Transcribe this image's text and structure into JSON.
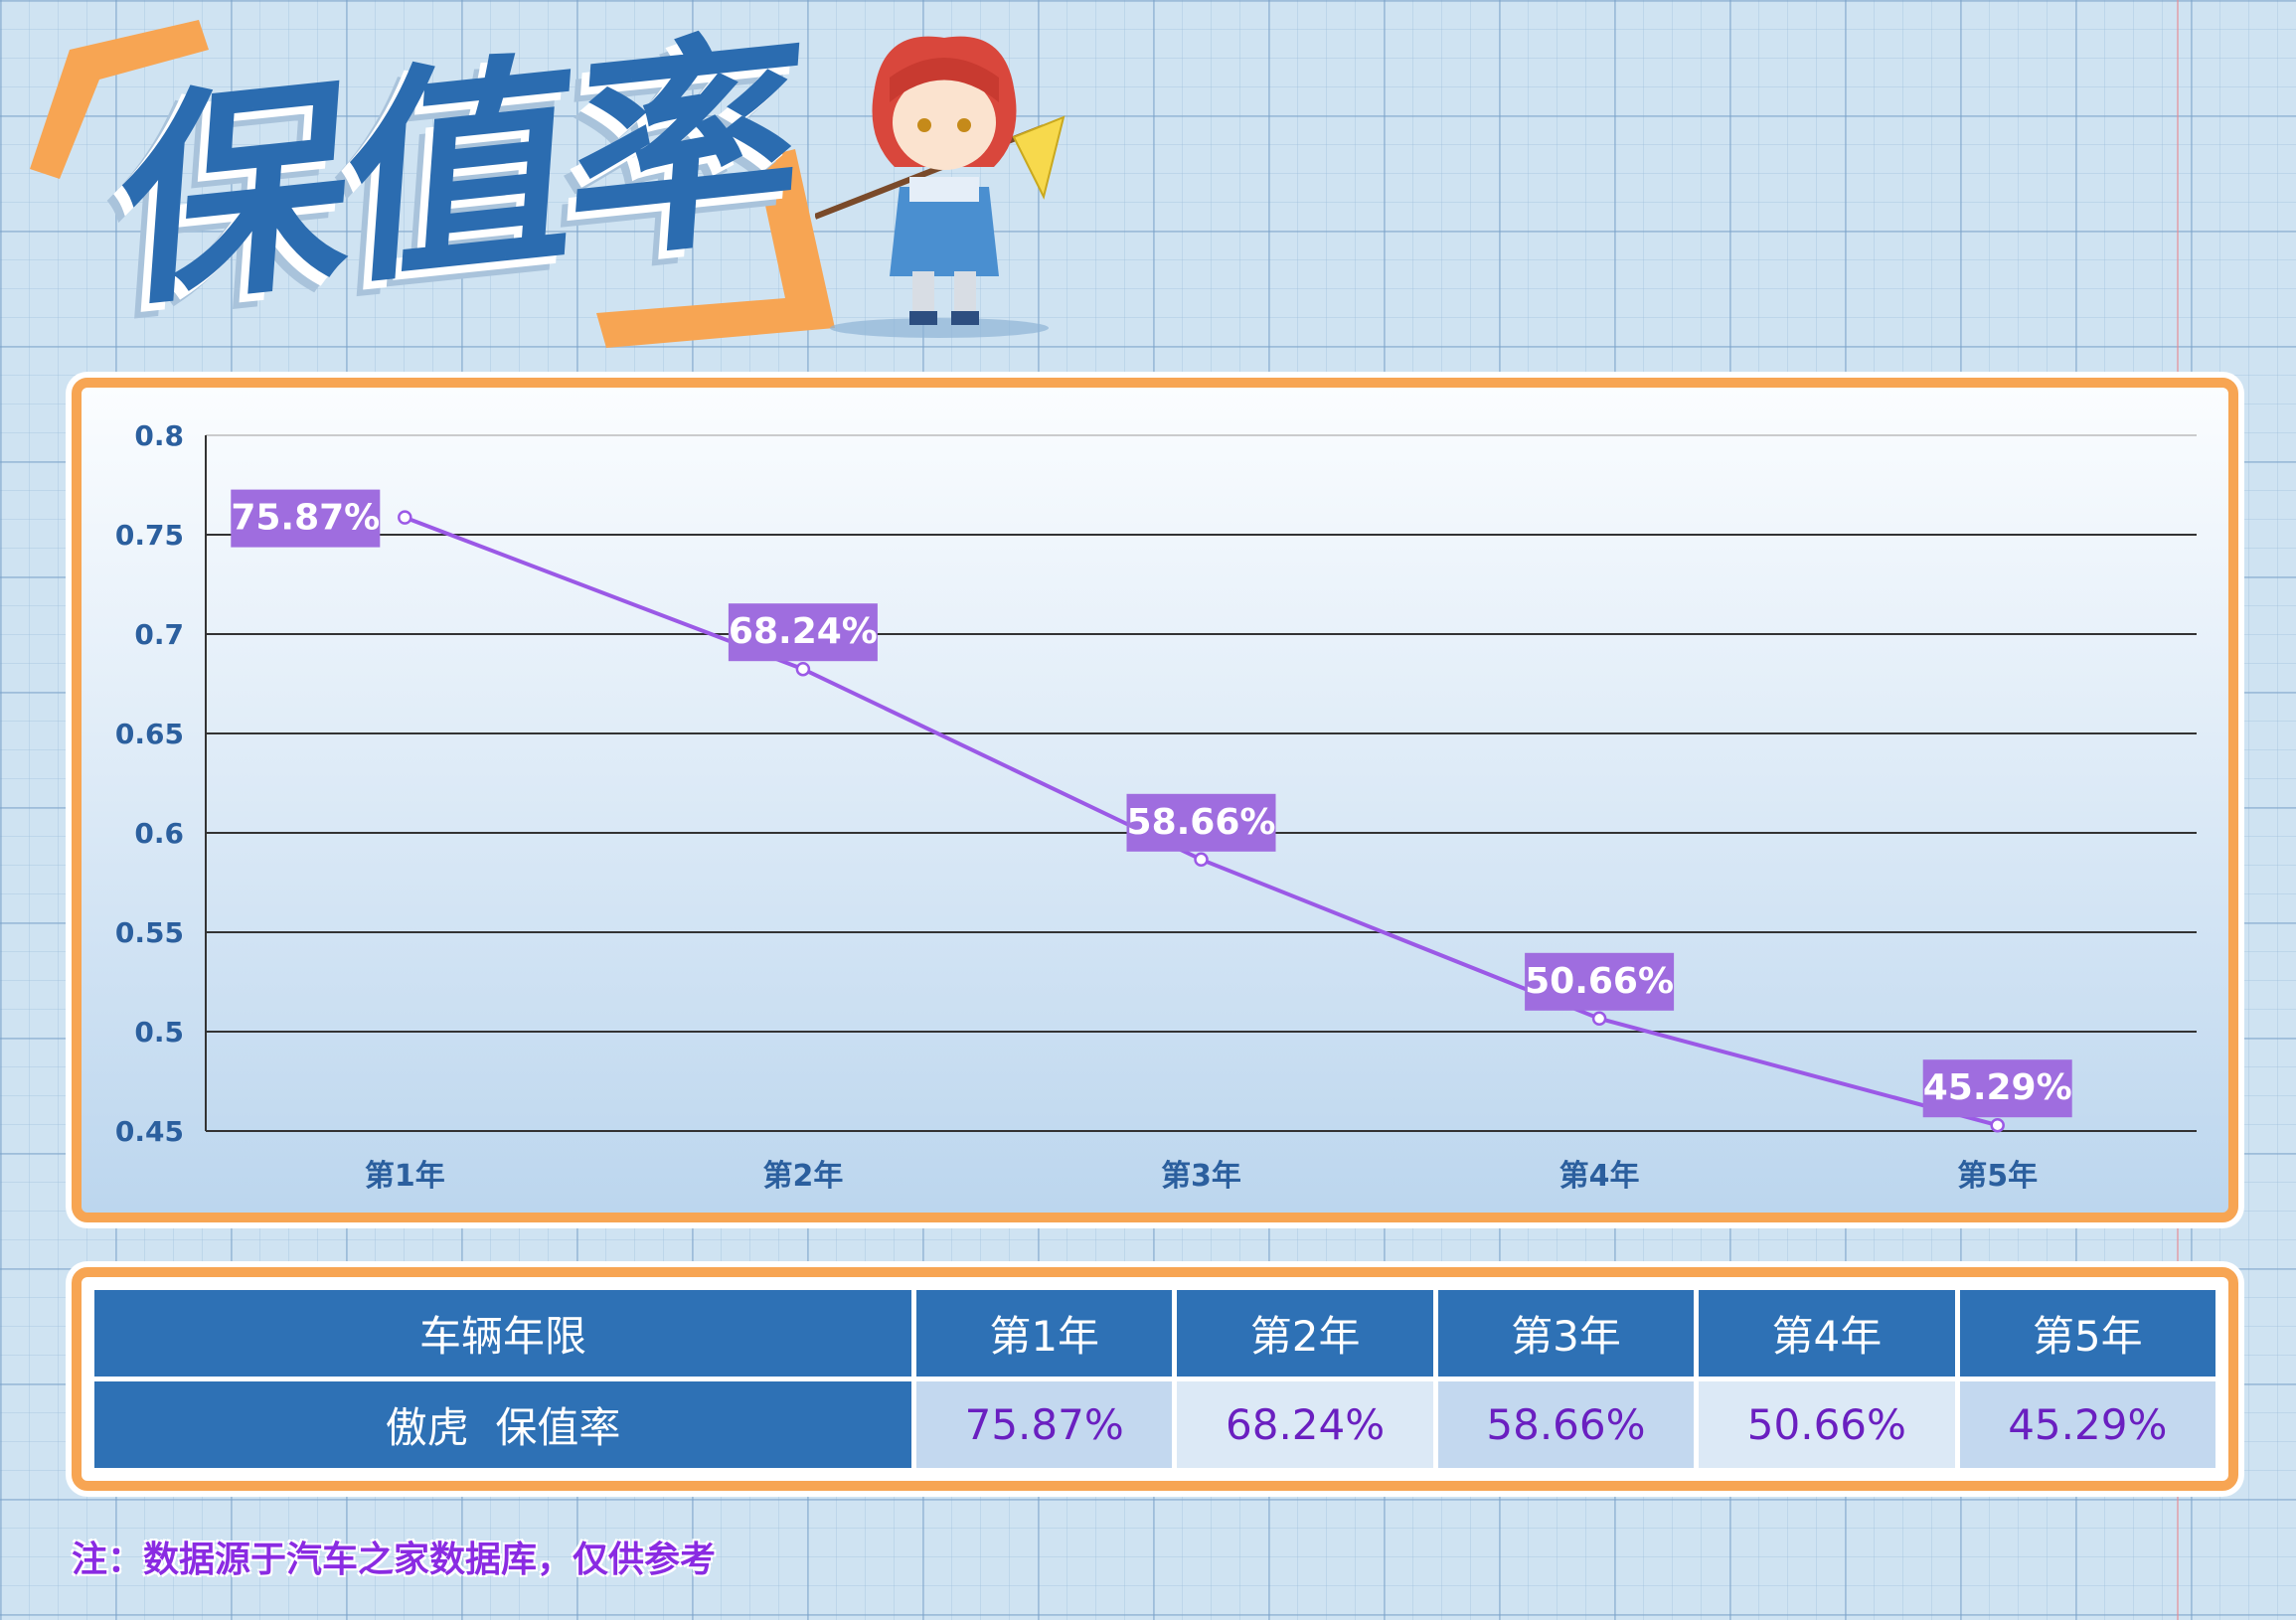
{
  "title": "保值率",
  "chart_data": {
    "type": "line",
    "categories": [
      "第1年",
      "第2年",
      "第3年",
      "第4年",
      "第5年"
    ],
    "values": [
      0.7587,
      0.6824,
      0.5866,
      0.5066,
      0.4529
    ],
    "data_labels": [
      "75.87%",
      "68.24%",
      "58.66%",
      "50.66%",
      "45.29%"
    ],
    "y_ticks": [
      "0.8",
      "0.75",
      "0.7",
      "0.65",
      "0.6",
      "0.55",
      "0.5",
      "0.45"
    ],
    "ylim": [
      0.45,
      0.8
    ],
    "grid": true,
    "line_color": "#9b59e6",
    "label_bg": "#9f6ddf"
  },
  "table": {
    "header_label": "车辆年限",
    "columns": [
      "第1年",
      "第2年",
      "第3年",
      "第4年",
      "第5年"
    ],
    "row_label": "傲虎  保值率",
    "values": [
      "75.87%",
      "68.24%",
      "58.66%",
      "50.66%",
      "45.29%"
    ]
  },
  "note": "注：数据源于汽车之家数据库，仅供参考",
  "colors": {
    "accent_orange": "#f7a553",
    "header_blue": "#2e71b5",
    "value_purple": "#6a1fc0"
  },
  "icons": {
    "mascot": "cartoon-warrior-mascot-icon"
  }
}
